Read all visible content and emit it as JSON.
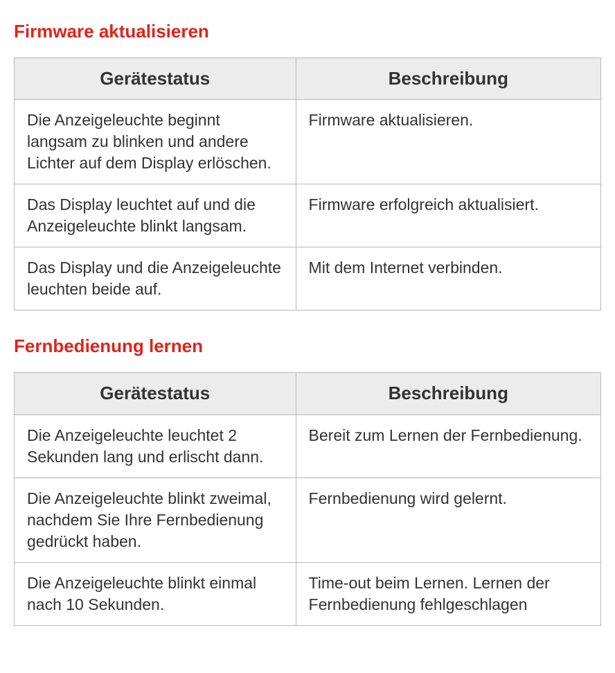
{
  "colors": {
    "heading": "#e32119",
    "border": "#b8b8b8",
    "header_bg": "#ececec",
    "text": "#333333",
    "background": "#ffffff"
  },
  "typography": {
    "heading_fontsize": 26,
    "header_cell_fontsize": 26,
    "body_cell_fontsize": 23,
    "font_family": "Segoe UI / Helvetica Neue / Arial"
  },
  "layout": {
    "col_status_width_pct": 48,
    "col_desc_width_pct": 52
  },
  "sections": [
    {
      "title": "Firmware aktualisieren",
      "columns": [
        "Gerätestatus",
        "Beschreibung"
      ],
      "rows": [
        [
          "Die Anzeigeleuchte beginnt langsam zu blinken und andere Lichter auf dem Display erlöschen.",
          "Firmware aktualisieren."
        ],
        [
          "Das Display leuchtet auf und die Anzeigeleuchte blinkt langsam.",
          "Firmware erfolgreich aktualisiert."
        ],
        [
          "Das Display und die Anzeigeleuchte leuchten beide auf.",
          "Mit dem Internet verbinden."
        ]
      ]
    },
    {
      "title": "Fernbedienung lernen",
      "columns": [
        "Gerätestatus",
        "Beschreibung"
      ],
      "rows": [
        [
          "Die Anzeigeleuchte leuchtet 2 Sekunden lang und erlischt dann.",
          "Bereit zum Lernen der Fernbedienung."
        ],
        [
          "Die Anzeigeleuchte blinkt zweimal, nachdem Sie Ihre Fernbedienung gedrückt haben.",
          "Fernbedienung wird gelernt."
        ],
        [
          "Die Anzeigeleuchte blinkt einmal nach 10 Sekunden.",
          "Time-out beim Lernen. Lernen der Fernbedienung fehlgeschlagen"
        ]
      ]
    }
  ]
}
